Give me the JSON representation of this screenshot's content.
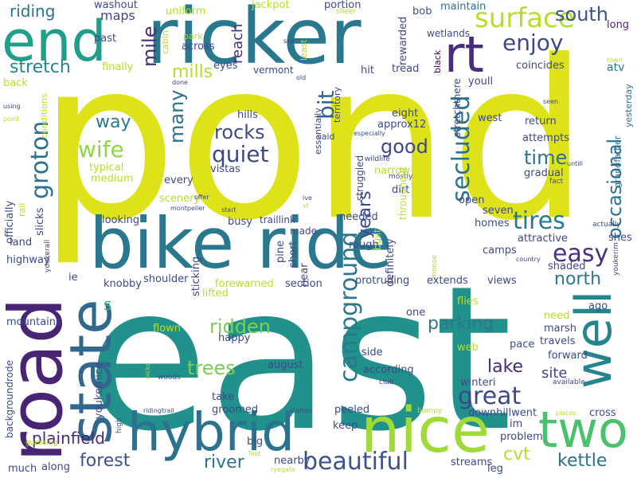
{
  "words": [
    {
      "text": "pond",
      "color": "#dde318"
    },
    {
      "text": "east",
      "color": "#21918c"
    },
    {
      "text": "ricker",
      "color": "#2a788e"
    },
    {
      "text": "bike ride",
      "color": "#2a788e"
    },
    {
      "text": "road",
      "color": "#482475"
    },
    {
      "text": "state",
      "color": "#31688e"
    },
    {
      "text": "nice",
      "color": "#a0da39"
    },
    {
      "text": "hybrid",
      "color": "#2c728e"
    },
    {
      "text": "end",
      "color": "#1f9e89"
    },
    {
      "text": "two",
      "color": "#4ac16d"
    },
    {
      "text": "well",
      "color": "#25858e"
    },
    {
      "text": "rt",
      "color": "#472d7b"
    },
    {
      "text": "surface",
      "color": "#b5de2b"
    },
    {
      "text": "enjoy",
      "color": "#3e4989"
    },
    {
      "text": "campground",
      "color": "#2a788e"
    },
    {
      "text": "beautiful",
      "color": "#3b528b"
    },
    {
      "text": "great",
      "color": "#3e4989"
    },
    {
      "text": "easy",
      "color": "#46327e"
    },
    {
      "text": "groton",
      "color": "#2c728e"
    },
    {
      "text": "secluded",
      "color": "#2c728e"
    },
    {
      "text": "tires",
      "color": "#2a788e"
    },
    {
      "text": "wife",
      "color": "#8ed645"
    },
    {
      "text": "quiet",
      "color": "#3e4989"
    },
    {
      "text": "rocks",
      "color": "#3e4989"
    },
    {
      "text": "occasional",
      "color": "#2c728e"
    },
    {
      "text": "south",
      "color": "#3b528b"
    },
    {
      "text": "stretch",
      "color": "#25858e"
    },
    {
      "text": "way",
      "color": "#2a788e"
    },
    {
      "text": "years",
      "color": "#3e4989"
    },
    {
      "text": "bit",
      "color": "#33638d"
    },
    {
      "text": "mile",
      "color": "#472d7b"
    },
    {
      "text": "many",
      "color": "#2c728e"
    },
    {
      "text": "good",
      "color": "#3e4989"
    },
    {
      "text": "time",
      "color": "#2c728e"
    },
    {
      "text": "north",
      "color": "#2a788e"
    },
    {
      "text": "parking",
      "color": "#2a788e"
    },
    {
      "text": "ridden",
      "color": "#7ad151"
    },
    {
      "text": "trees",
      "color": "#7ad151"
    },
    {
      "text": "lake",
      "color": "#482878"
    },
    {
      "text": "river",
      "color": "#2c728e"
    },
    {
      "text": "forest",
      "color": "#3b528b"
    },
    {
      "text": "kettle",
      "color": "#2c728e"
    },
    {
      "text": "cvt",
      "color": "#b5de2b"
    },
    {
      "text": "plainfield",
      "color": "#482878"
    },
    {
      "text": "mills",
      "color": "#b5de2b"
    },
    {
      "text": "riding",
      "color": "#2c728e"
    },
    {
      "text": "maps",
      "color": "#3e4989"
    },
    {
      "text": "reach",
      "color": "#472d7b"
    },
    {
      "text": "atv",
      "color": "#2a788e"
    },
    {
      "text": "s",
      "color": "#35b779"
    },
    {
      "text": "site",
      "color": "#3e4989"
    },
    {
      "text": "washout",
      "color": "#3e4989"
    },
    {
      "text": "uniform",
      "color": "#b5de2b"
    },
    {
      "text": "jackpot",
      "color": "#b5de2b"
    },
    {
      "text": "portion",
      "color": "#3e4989"
    },
    {
      "text": "bob",
      "color": "#3b528b"
    },
    {
      "text": "maintain",
      "color": "#2c728e"
    },
    {
      "text": "long",
      "color": "#482878"
    },
    {
      "text": "sheer",
      "color": "#b5de2b"
    },
    {
      "text": "past",
      "color": "#3e4989"
    },
    {
      "text": "park",
      "color": "#b5de2b"
    },
    {
      "text": "across",
      "color": "#3e4989"
    },
    {
      "text": "least",
      "color": "#b5de2b"
    },
    {
      "text": "rewarded",
      "color": "#3e4989"
    },
    {
      "text": "wetlands",
      "color": "#3e4989"
    },
    {
      "text": "black",
      "color": "#440154"
    },
    {
      "text": "town",
      "color": "#b5de2b"
    },
    {
      "text": "finally",
      "color": "#b5de2b"
    },
    {
      "text": "eyes",
      "color": "#3e4989"
    },
    {
      "text": "vermont",
      "color": "#3e4989"
    },
    {
      "text": "hit",
      "color": "#3e4989"
    },
    {
      "text": "tread",
      "color": "#3e4989"
    },
    {
      "text": "coincides",
      "color": "#3e4989"
    },
    {
      "text": "youll",
      "color": "#3e4989"
    },
    {
      "text": "back",
      "color": "#b5de2b"
    },
    {
      "text": "cabin",
      "color": "#b5de2b"
    },
    {
      "text": "see",
      "color": "#3e4989"
    },
    {
      "text": "old",
      "color": "#3e4989"
    },
    {
      "text": "done",
      "color": "#3e4989"
    },
    {
      "text": "seen",
      "color": "#3e4989"
    },
    {
      "text": "yesterday",
      "color": "#2c728e"
    },
    {
      "text": "using",
      "color": "#3e4989"
    },
    {
      "text": "point",
      "color": "#b5de2b"
    },
    {
      "text": "conditions",
      "color": "#b5de2b"
    },
    {
      "text": "hills",
      "color": "#3e4989"
    },
    {
      "text": "essentially",
      "color": "#3e4989"
    },
    {
      "text": "territory",
      "color": "#3e4989"
    },
    {
      "text": "eight",
      "color": "#3e4989"
    },
    {
      "text": "approx12",
      "color": "#3e4989"
    },
    {
      "text": "west",
      "color": "#3e4989"
    },
    {
      "text": "stretchthere",
      "color": "#3e4989"
    },
    {
      "text": "especially",
      "color": "#3e4989"
    },
    {
      "text": "return",
      "color": "#3e4989"
    },
    {
      "text": "attempts",
      "color": "#3e4989"
    },
    {
      "text": "grandfather",
      "color": "#2c728e"
    },
    {
      "text": "said",
      "color": "#3e4989"
    },
    {
      "text": "vistas",
      "color": "#3e4989"
    },
    {
      "text": "struggled",
      "color": "#3e4989"
    },
    {
      "text": "wildlife",
      "color": "#3e4989"
    },
    {
      "text": "mostly",
      "color": "#3e4989"
    },
    {
      "text": "typical",
      "color": "#b5de2b"
    },
    {
      "text": "medium",
      "color": "#b5de2b"
    },
    {
      "text": "narrow",
      "color": "#b5de2b"
    },
    {
      "text": "dirt",
      "color": "#3e4989"
    },
    {
      "text": "gradual",
      "color": "#3e4989"
    },
    {
      "text": "fact",
      "color": "#3e4989"
    },
    {
      "text": "untill",
      "color": "#3e4989"
    },
    {
      "text": "officially",
      "color": "#3e4989"
    },
    {
      "text": "every",
      "color": "#3e4989"
    },
    {
      "text": "scenery",
      "color": "#b5de2b"
    },
    {
      "text": "ive",
      "color": "#3e4989"
    },
    {
      "text": "vt",
      "color": "#b5de2b"
    },
    {
      "text": "throughout",
      "color": "#b5de2b"
    },
    {
      "text": "open",
      "color": "#3e4989"
    },
    {
      "text": "seven",
      "color": "#3e4989"
    },
    {
      "text": "rail",
      "color": "#b5de2b"
    },
    {
      "text": "slicks",
      "color": "#3e4989"
    },
    {
      "text": "montpelier",
      "color": "#3e4989"
    },
    {
      "text": "start",
      "color": "#3e4989"
    },
    {
      "text": "needed",
      "color": "#3e4989"
    },
    {
      "text": "homes",
      "color": "#3e4989"
    },
    {
      "text": "actually",
      "color": "#3e4989"
    },
    {
      "text": "land",
      "color": "#3e4989"
    },
    {
      "text": "looking",
      "color": "#3e4989"
    },
    {
      "text": "busy",
      "color": "#3e4989"
    },
    {
      "text": "traillink",
      "color": "#3e4989"
    },
    {
      "text": "built",
      "color": "#b5de2b"
    },
    {
      "text": "shes",
      "color": "#3e4989"
    },
    {
      "text": "made",
      "color": "#3e4989"
    },
    {
      "text": "pine",
      "color": "#3e4989"
    },
    {
      "text": "short",
      "color": "#3e4989"
    },
    {
      "text": "rough",
      "color": "#3e4989"
    },
    {
      "text": "attractive",
      "color": "#3e4989"
    },
    {
      "text": "camps",
      "color": "#3e4989"
    },
    {
      "text": "youkerall",
      "color": "#3e4989"
    },
    {
      "text": "country",
      "color": "#3e4989"
    },
    {
      "text": "youkerim",
      "color": "#3e4989"
    },
    {
      "text": "highway",
      "color": "#3e4989"
    },
    {
      "text": "sticking",
      "color": "#3e4989"
    },
    {
      "text": "near",
      "color": "#3e4989"
    },
    {
      "text": "definitely",
      "color": "#3e4989"
    },
    {
      "text": "moose",
      "color": "#b5de2b"
    },
    {
      "text": "shaded",
      "color": "#3e4989"
    },
    {
      "text": "ie",
      "color": "#3e4989"
    },
    {
      "text": "knobby",
      "color": "#3e4989"
    },
    {
      "text": "shoulder",
      "color": "#3e4989"
    },
    {
      "text": "forewarned",
      "color": "#b5de2b"
    },
    {
      "text": "section",
      "color": "#3e4989"
    },
    {
      "text": "protruding",
      "color": "#3e4989"
    },
    {
      "text": "extends",
      "color": "#3e4989"
    },
    {
      "text": "views",
      "color": "#3e4989"
    },
    {
      "text": "lifted",
      "color": "#b5de2b"
    },
    {
      "text": "flies",
      "color": "#b5de2b"
    },
    {
      "text": "ago",
      "color": "#3e4989"
    },
    {
      "text": "one",
      "color": "#3e4989"
    },
    {
      "text": "need",
      "color": "#b5de2b"
    },
    {
      "text": "marsh",
      "color": "#3e4989"
    },
    {
      "text": "mountains",
      "color": "#3e4989"
    },
    {
      "text": "flown",
      "color": "#b5de2b"
    },
    {
      "text": "happy",
      "color": "#3e4989"
    },
    {
      "text": "web",
      "color": "#b5de2b"
    },
    {
      "text": "pace",
      "color": "#3e4989"
    },
    {
      "text": "travels",
      "color": "#3e4989"
    },
    {
      "text": "forward",
      "color": "#3e4989"
    },
    {
      "text": "side",
      "color": "#3e4989"
    },
    {
      "text": "august",
      "color": "#3e4989"
    },
    {
      "text": "according",
      "color": "#3e4989"
    },
    {
      "text": "winteri",
      "color": "#3e4989"
    },
    {
      "text": "backgroundrode",
      "color": "#3e4989"
    },
    {
      "text": "youkernice",
      "color": "#3e4989"
    },
    {
      "text": "picks",
      "color": "#b5de2b"
    },
    {
      "text": "woods",
      "color": "#3e4989"
    },
    {
      "text": "club",
      "color": "#3e4989"
    },
    {
      "text": "available",
      "color": "#3e4989"
    },
    {
      "text": "take",
      "color": "#3e4989"
    },
    {
      "text": "groomed",
      "color": "#3e4989"
    },
    {
      "text": "ridingtrail",
      "color": "#3e4989"
    },
    {
      "text": "station",
      "color": "#3e4989"
    },
    {
      "text": "peeled",
      "color": "#3e4989"
    },
    {
      "text": "bumpy",
      "color": "#b5de2b"
    },
    {
      "text": "downhillwent",
      "color": "#3e4989"
    },
    {
      "text": "places",
      "color": "#b5de2b"
    },
    {
      "text": "cross",
      "color": "#3e4989"
    },
    {
      "text": "high",
      "color": "#3e4989"
    },
    {
      "text": "keep",
      "color": "#3e4989"
    },
    {
      "text": "im",
      "color": "#3e4989"
    },
    {
      "text": "guessing",
      "color": "#b5de2b"
    },
    {
      "text": "big",
      "color": "#3e4989"
    },
    {
      "text": "problem",
      "color": "#3e4989"
    },
    {
      "text": "feet",
      "color": "#b5de2b"
    },
    {
      "text": "much",
      "color": "#3e4989"
    },
    {
      "text": "along",
      "color": "#3e4989"
    },
    {
      "text": "nearby",
      "color": "#3e4989"
    },
    {
      "text": "ryegate",
      "color": "#b5de2b"
    },
    {
      "text": "streams",
      "color": "#3e4989"
    },
    {
      "text": "leg",
      "color": "#3e4989"
    },
    {
      "text": "offer",
      "color": "#3e4989"
    }
  ]
}
